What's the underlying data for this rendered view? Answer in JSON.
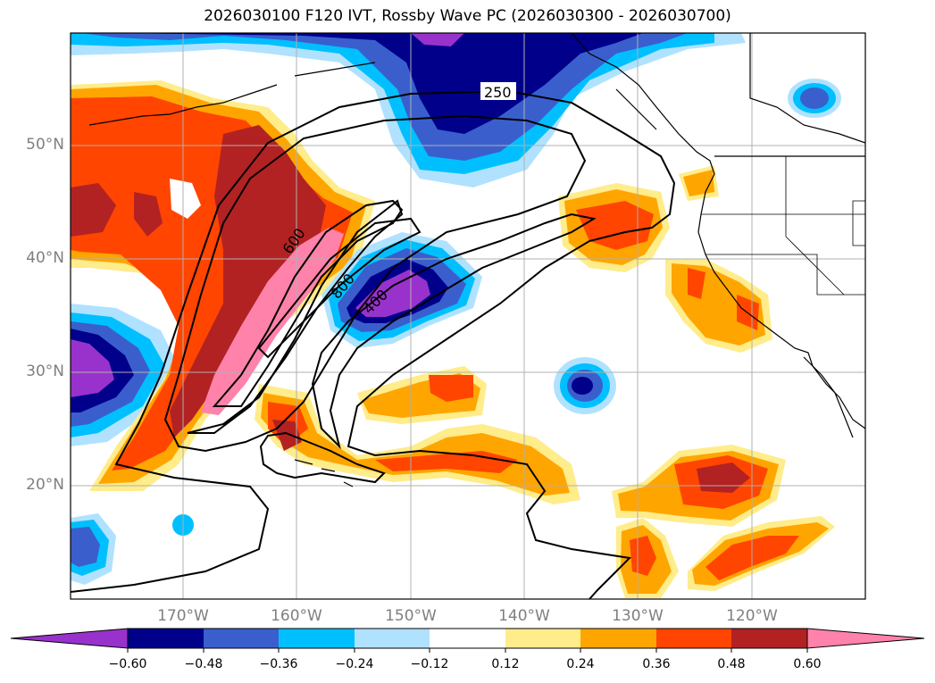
{
  "title": "2026030100 F120 IVT, Rossby Wave PC (2026030300 - 2026030700)",
  "lat_labels": [
    "50°N",
    "40°N",
    "30°N",
    "20°N"
  ],
  "lon_labels": [
    "170°W",
    "160°W",
    "150°W",
    "140°W",
    "130°W",
    "120°W"
  ],
  "contour_labels": [
    "250",
    "600",
    "800",
    "400"
  ],
  "colorbar": {
    "ticks": [
      "−0.60",
      "−0.48",
      "−0.36",
      "−0.24",
      "−0.12",
      "0.12",
      "0.24",
      "0.36",
      "0.48",
      "0.60"
    ],
    "colors": [
      "#9932cc",
      "#00008b",
      "#3a5fcd",
      "#00bfff",
      "#b0e2ff",
      "#ffffff",
      "#ffec8b",
      "#ffa500",
      "#ff4500",
      "#b22222",
      "#ff82ab"
    ]
  },
  "colors": {
    "land_outline": "#000000",
    "grid": "#b0b0b0",
    "contour": "#000000"
  }
}
